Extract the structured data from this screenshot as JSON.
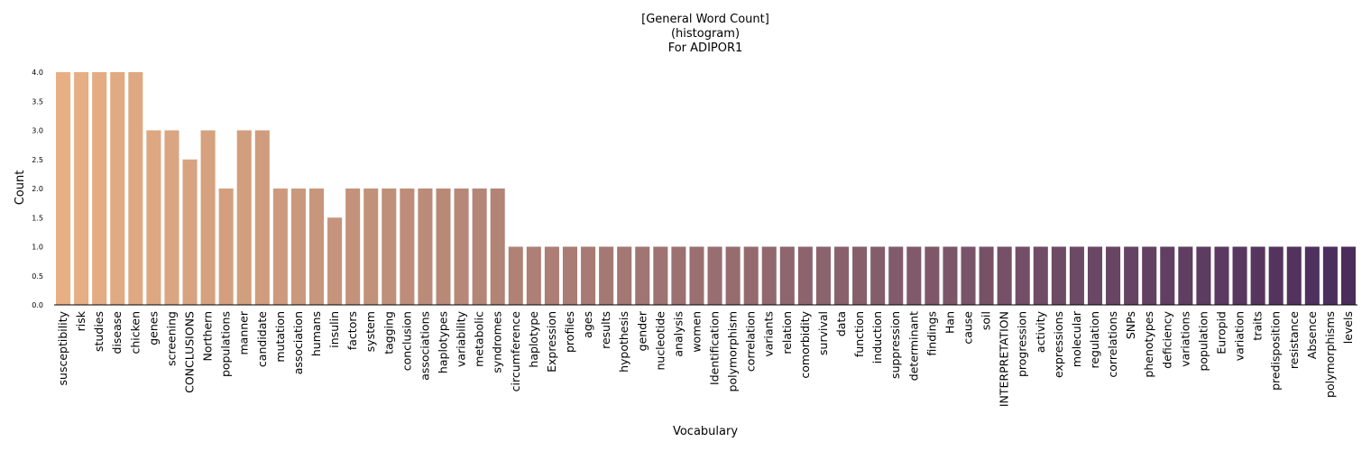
{
  "chart_data": {
    "type": "bar",
    "title": [
      "[General Word Count]",
      "(histogram)",
      "For ADIPOR1"
    ],
    "xlabel": "Vocabulary",
    "ylabel": "Count",
    "ylim": [
      0,
      4
    ],
    "yticks": [
      "0.0",
      "0.5",
      "1.0",
      "1.5",
      "2.0",
      "2.5",
      "3.0",
      "3.5",
      "4.0"
    ],
    "grid": false,
    "palette": "flare",
    "color_start": "#e7b084",
    "color_end": "#4b2d5c",
    "categories": [
      "susceptibility",
      "risk",
      "studies",
      "disease",
      "chicken",
      "genes",
      "screening",
      "CONCLUSIONS",
      "Northern",
      "populations",
      "manner",
      "candidate",
      "mutation",
      "association",
      "humans",
      "insulin",
      "factors",
      "system",
      "tagging",
      "conclusion",
      "associations",
      "haplotypes",
      "variability",
      "metabolic",
      "syndromes",
      "circumference",
      "haplotype",
      "Expression",
      "profiles",
      "ages",
      "results",
      "hypothesis",
      "gender",
      "nucleotide",
      "analysis",
      "women",
      "Identification",
      "polymorphism",
      "correlation",
      "variants",
      "relation",
      "comorbidity",
      "survival",
      "data",
      "function",
      "induction",
      "suppression",
      "determinant",
      "findings",
      "Han",
      "cause",
      "soil",
      "INTERPRETATION",
      "progression",
      "activity",
      "expressions",
      "molecular",
      "regulation",
      "correlations",
      "SNPs",
      "phenotypes",
      "deficiency",
      "variations",
      "population",
      "Europid",
      "variation",
      "traits",
      "predisposition",
      "resistance",
      "Absence",
      "polymorphisms",
      "levels"
    ],
    "values": [
      4,
      4,
      4,
      4,
      4,
      3,
      3,
      2.5,
      3,
      2,
      3,
      3,
      2,
      2,
      2,
      1.5,
      2,
      2,
      2,
      2,
      2,
      2,
      2,
      2,
      2,
      1,
      1,
      1,
      1,
      1,
      1,
      1,
      1,
      1,
      1,
      1,
      1,
      1,
      1,
      1,
      1,
      1,
      1,
      1,
      1,
      1,
      1,
      1,
      1,
      1,
      1,
      1,
      1,
      1,
      1,
      1,
      1,
      1,
      1,
      1,
      1,
      1,
      1,
      1,
      1,
      1,
      1,
      1,
      1,
      1,
      1,
      1
    ]
  }
}
